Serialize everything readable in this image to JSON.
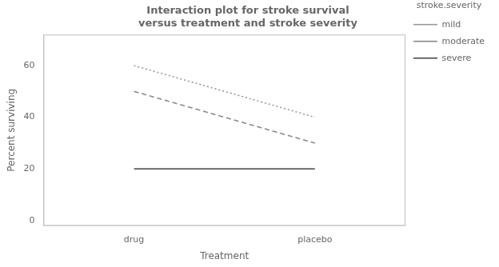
{
  "chart_data": {
    "type": "line",
    "title": "Interaction plot for stroke survival\nversus treatment and stroke severity",
    "xlabel": "Treatment",
    "ylabel": "Percent surviving",
    "categories": [
      "drug",
      "placebo"
    ],
    "series": [
      {
        "name": "mild",
        "color": "#999999",
        "line_style": "dotted",
        "values": [
          60,
          40
        ]
      },
      {
        "name": "moderate",
        "color": "#888888",
        "line_style": "dashed",
        "values": [
          50,
          30
        ]
      },
      {
        "name": "severe",
        "color": "#444444",
        "line_style": "solid",
        "values": [
          20,
          20
        ]
      }
    ],
    "ylim": [
      -2,
      72
    ],
    "yticks": [
      0,
      20,
      40,
      60
    ],
    "grid": false,
    "legend": "upper right",
    "legend_title": "stroke.severity"
  }
}
